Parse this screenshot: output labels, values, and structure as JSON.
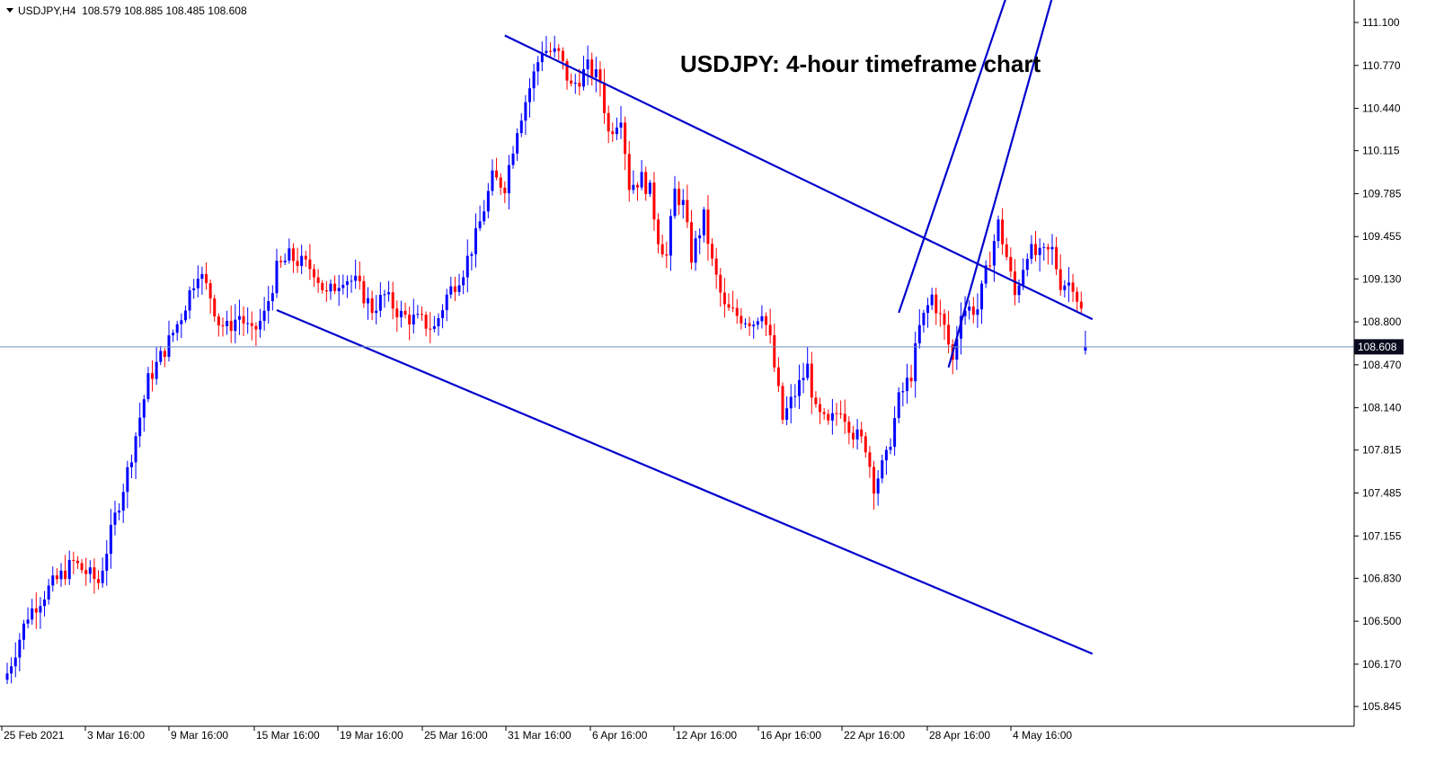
{
  "header": {
    "symbol_info": "USDJPY,H4  108.579 108.885 108.485 108.608"
  },
  "chart_data": {
    "type": "candlestick",
    "title": "USDJPY: 4-hour timeframe chart",
    "current_price": "108.608",
    "y_ticks": [
      "111.100",
      "110.770",
      "110.440",
      "110.115",
      "109.785",
      "109.455",
      "109.130",
      "108.800",
      "108.470",
      "108.140",
      "107.815",
      "107.485",
      "107.155",
      "106.830",
      "106.500",
      "106.170",
      "105.845"
    ],
    "x_ticks": [
      "25 Feb 2021",
      "3 Mar 16:00",
      "9 Mar 16:00",
      "15 Mar 16:00",
      "19 Mar 16:00",
      "25 Mar 16:00",
      "31 Mar 16:00",
      "6 Apr 16:00",
      "12 Apr 16:00",
      "16 Apr 16:00",
      "22 Apr 16:00",
      "28 Apr 16:00",
      "4 May 16:00"
    ],
    "ylim": [
      105.76,
      111.3
    ],
    "grid": false,
    "colors": {
      "bull": "#0000ff",
      "bear": "#ff0000",
      "trendline": "#0000cd",
      "price_line": "#6e8ebf",
      "price_label_bg": "#0a0a1e"
    },
    "candle_path": [
      [
        0,
        106.1
      ],
      [
        5,
        106.55
      ],
      [
        10,
        106.75
      ],
      [
        16,
        106.95
      ],
      [
        22,
        106.8
      ],
      [
        26,
        107.3
      ],
      [
        29,
        107.65
      ],
      [
        34,
        108.35
      ],
      [
        39,
        108.65
      ],
      [
        42,
        108.85
      ],
      [
        46,
        109.2
      ],
      [
        49,
        109.0
      ],
      [
        51,
        108.8
      ],
      [
        53,
        108.75
      ],
      [
        56,
        108.85
      ],
      [
        59,
        108.7
      ],
      [
        62,
        108.85
      ],
      [
        65,
        109.2
      ],
      [
        68,
        109.3
      ],
      [
        71,
        109.25
      ],
      [
        74,
        109.2
      ],
      [
        77,
        109.0
      ],
      [
        81,
        109.15
      ],
      [
        84,
        109.1
      ],
      [
        88,
        108.9
      ],
      [
        91,
        109.0
      ],
      [
        95,
        108.85
      ],
      [
        100,
        108.8
      ],
      [
        103,
        108.75
      ],
      [
        106,
        109.0
      ],
      [
        110,
        109.2
      ],
      [
        113,
        109.45
      ],
      [
        117,
        109.9
      ],
      [
        120,
        109.85
      ],
      [
        123,
        110.3
      ],
      [
        126,
        110.6
      ],
      [
        129,
        110.9
      ],
      [
        133,
        110.85
      ],
      [
        136,
        110.6
      ],
      [
        140,
        110.75
      ],
      [
        143,
        110.65
      ],
      [
        145,
        110.25
      ],
      [
        148,
        110.4
      ],
      [
        150,
        109.85
      ],
      [
        153,
        109.9
      ],
      [
        155,
        109.8
      ],
      [
        157,
        109.45
      ],
      [
        159,
        109.3
      ],
      [
        161,
        109.8
      ],
      [
        163,
        109.7
      ],
      [
        165,
        109.3
      ],
      [
        168,
        109.6
      ],
      [
        170,
        109.25
      ],
      [
        173,
        108.9
      ],
      [
        176,
        108.85
      ],
      [
        180,
        108.8
      ],
      [
        182,
        108.9
      ],
      [
        184,
        108.65
      ],
      [
        187,
        108.05
      ],
      [
        190,
        108.25
      ],
      [
        193,
        108.45
      ],
      [
        195,
        108.1
      ],
      [
        198,
        108.0
      ],
      [
        201,
        108.15
      ],
      [
        204,
        107.95
      ],
      [
        207,
        107.85
      ],
      [
        209,
        107.55
      ],
      [
        212,
        107.75
      ],
      [
        215,
        108.2
      ],
      [
        218,
        108.4
      ],
      [
        220,
        108.75
      ],
      [
        223,
        109.0
      ],
      [
        226,
        108.75
      ],
      [
        228,
        108.5
      ],
      [
        230,
        108.9
      ],
      [
        234,
        108.9
      ],
      [
        237,
        109.3
      ],
      [
        239,
        109.55
      ],
      [
        241,
        109.3
      ],
      [
        243,
        109.0
      ],
      [
        246,
        109.35
      ],
      [
        249,
        109.3
      ],
      [
        252,
        109.35
      ],
      [
        254,
        109.1
      ],
      [
        257,
        109.1
      ],
      [
        259,
        108.88
      ],
      [
        260,
        108.61
      ]
    ],
    "trendlines": [
      {
        "name": "upper-channel-line",
        "start": [
          111.0,
          120
        ],
        "end": [
          108.82,
          261.7
        ]
      },
      {
        "name": "lower-channel-line",
        "start": [
          108.89,
          65
        ],
        "end": [
          106.25,
          261.7
        ]
      },
      {
        "name": "rising-channel-upper",
        "start": [
          108.87,
          215
        ],
        "end": [
          111.35,
          241.5
        ]
      },
      {
        "name": "rising-channel-lower",
        "start": [
          108.45,
          227
        ],
        "end": [
          111.35,
          252.5
        ]
      }
    ]
  }
}
